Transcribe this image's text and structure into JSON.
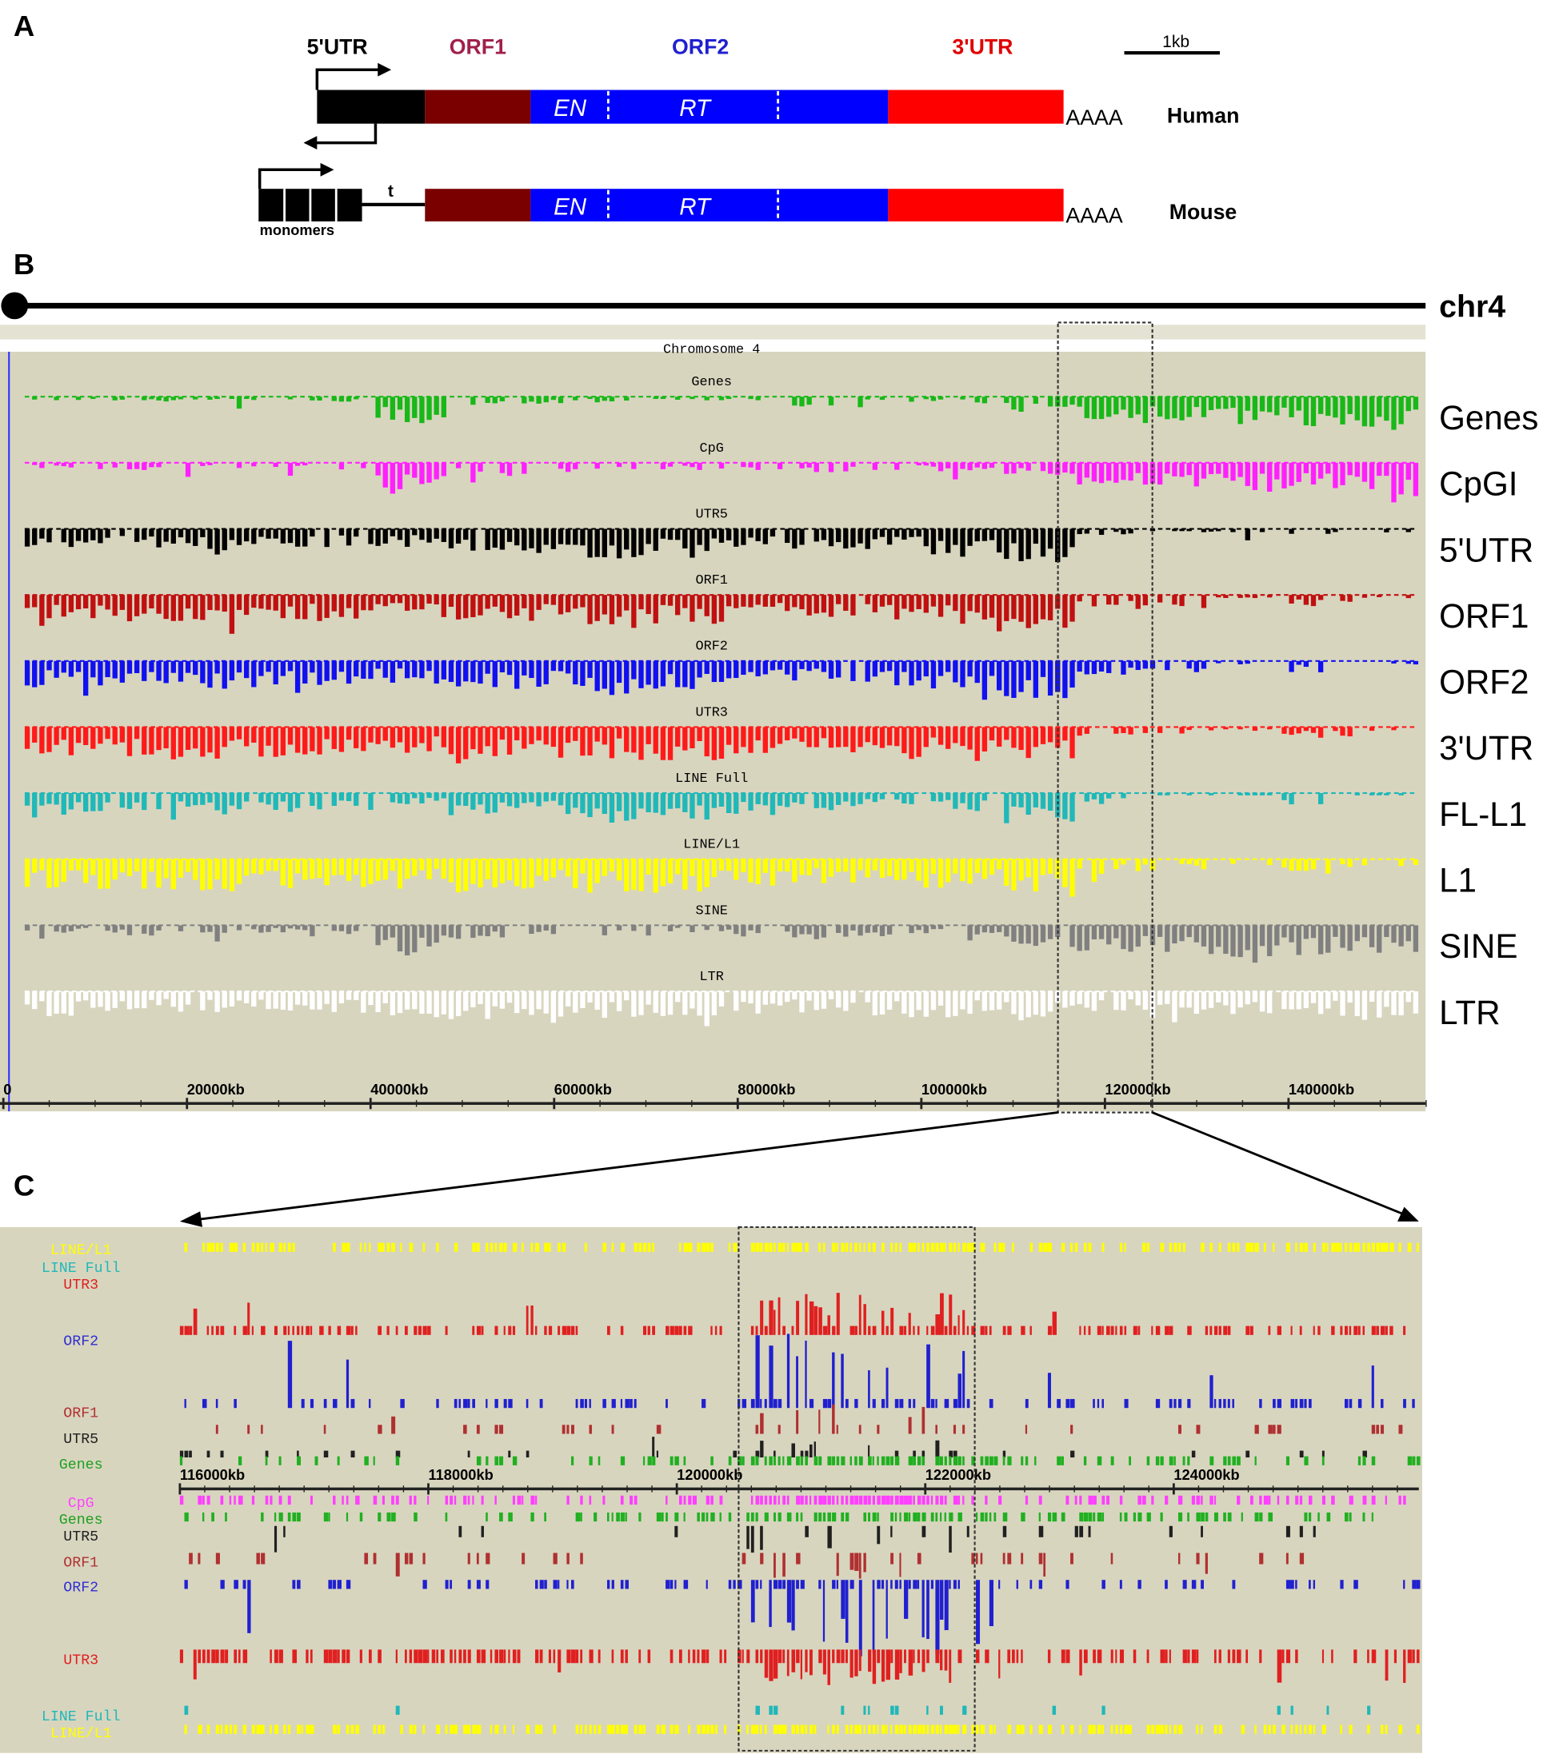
{
  "panelA": {
    "letter": "A",
    "labels": {
      "utr5": "5'UTR",
      "orf1": "ORF1",
      "orf2": "ORF2",
      "utr3": "3'UTR",
      "scale": "1kb"
    },
    "domains": {
      "en": "EN",
      "rt": "RT"
    },
    "polyA": "AAAA",
    "human": "Human",
    "mouse": "Mouse",
    "monomers": "monomers",
    "tether": "t",
    "colors": {
      "utr5": "#000000",
      "orf1": "#7a0000",
      "orf2": "#0000ff",
      "utr3": "#ff0000",
      "orf1_label": "#a0204a",
      "orf2_label": "#2020d0",
      "utr3_label": "#e00000"
    }
  },
  "panelB": {
    "letter": "B",
    "chromosome": "chr4",
    "browser_title": "Chromosome 4",
    "tracks": [
      {
        "key": "Genes",
        "label": "Genes",
        "color": "#18b818",
        "profile": [
          0.1,
          0.15,
          0.1,
          0.1,
          0.15,
          0.7,
          0.3,
          0.2,
          0.15,
          0.1,
          0.1,
          0.3,
          0.15,
          0.2,
          0.4,
          0.6,
          0.7,
          0.8,
          0.8,
          0.9
        ]
      },
      {
        "key": "CpG",
        "label": "CpGI",
        "color": "#ff20ff",
        "profile": [
          0.15,
          0.2,
          0.15,
          0.15,
          0.2,
          0.7,
          0.35,
          0.3,
          0.25,
          0.2,
          0.2,
          0.3,
          0.2,
          0.25,
          0.4,
          0.7,
          0.7,
          0.8,
          0.8,
          0.9
        ]
      },
      {
        "key": "UTR5",
        "label": "5'UTR",
        "color": "#000000",
        "profile": [
          0.5,
          0.5,
          0.6,
          0.55,
          0.5,
          0.5,
          0.6,
          0.7,
          0.8,
          0.7,
          0.6,
          0.55,
          0.6,
          0.7,
          0.9,
          0.2,
          0.1,
          0.1,
          0.2,
          0.1
        ]
      },
      {
        "key": "ORF1",
        "label": "ORF1",
        "color": "#c01010",
        "profile": [
          0.7,
          0.7,
          0.8,
          0.7,
          0.7,
          0.6,
          0.7,
          0.7,
          0.9,
          0.8,
          0.6,
          0.6,
          0.7,
          0.8,
          1,
          0.4,
          0.3,
          0.1,
          0.3,
          0.1
        ]
      },
      {
        "key": "ORF2",
        "label": "ORF2",
        "color": "#1010f0",
        "profile": [
          0.7,
          0.7,
          0.8,
          0.7,
          0.7,
          0.6,
          0.7,
          0.7,
          0.9,
          0.8,
          0.6,
          0.6,
          0.7,
          0.8,
          1,
          0.4,
          0.3,
          0.1,
          0.3,
          0.1
        ]
      },
      {
        "key": "UTR3",
        "label": "3'UTR",
        "color": "#ff1a1a",
        "profile": [
          0.8,
          0.8,
          0.9,
          0.8,
          0.8,
          0.7,
          0.9,
          0.8,
          0.9,
          0.9,
          0.7,
          0.7,
          0.8,
          0.8,
          0.9,
          0.3,
          0.2,
          0.1,
          0.3,
          0.1
        ]
      },
      {
        "key": "LINE Full",
        "label": "FL-L1",
        "color": "#20b8b8",
        "profile": [
          0.6,
          0.5,
          0.6,
          0.5,
          0.5,
          0.3,
          0.6,
          0.6,
          0.8,
          0.7,
          0.6,
          0.4,
          0.3,
          0.5,
          0.9,
          0.3,
          0.05,
          0.05,
          0.3,
          0.05
        ]
      },
      {
        "key": "LINE/L1",
        "label": "L1",
        "color": "#ffff00",
        "profile": [
          0.8,
          0.8,
          0.9,
          0.8,
          0.8,
          0.7,
          0.9,
          0.8,
          0.9,
          0.9,
          0.8,
          0.7,
          0.8,
          0.8,
          0.9,
          0.4,
          0.3,
          0.2,
          0.4,
          0.2
        ]
      },
      {
        "key": "SINE",
        "label": "SINE",
        "color": "#808080",
        "profile": [
          0.2,
          0.3,
          0.2,
          0.2,
          0.3,
          0.8,
          0.4,
          0.3,
          0.3,
          0.2,
          0.3,
          0.4,
          0.3,
          0.3,
          0.6,
          0.8,
          0.8,
          1,
          0.8,
          0.8
        ]
      },
      {
        "key": "LTR",
        "label": "LTR",
        "color": "#ffffff",
        "profile": [
          0.7,
          0.6,
          0.6,
          0.6,
          0.6,
          0.7,
          0.8,
          0.7,
          0.7,
          0.7,
          0.6,
          0.6,
          0.7,
          0.7,
          0.8,
          0.6,
          0.6,
          0.6,
          0.7,
          0.7
        ]
      }
    ],
    "axis_ticks": [
      "0",
      "20000kb",
      "40000kb",
      "60000kb",
      "80000kb",
      "100000kb",
      "120000kb",
      "140000kb"
    ]
  },
  "panelC": {
    "letter": "C",
    "upper_labels": [
      {
        "text": "LINE/L1",
        "color": "#ffff00"
      },
      {
        "text": "LINE Full",
        "color": "#20b8b8"
      },
      {
        "text": "UTR3",
        "color": "#e02020"
      },
      {
        "text": "ORF2",
        "color": "#3030d0"
      },
      {
        "text": "ORF1",
        "color": "#b03030"
      },
      {
        "text": "UTR5",
        "color": "#202020"
      },
      {
        "text": "Genes",
        "color": "#20a020"
      }
    ],
    "lower_labels": [
      {
        "text": "CpG",
        "color": "#ff40ff"
      },
      {
        "text": "Genes",
        "color": "#20a020"
      },
      {
        "text": "UTR5",
        "color": "#202020"
      },
      {
        "text": "ORF1",
        "color": "#b03030"
      },
      {
        "text": "ORF2",
        "color": "#3030d0"
      },
      {
        "text": "UTR3",
        "color": "#e02020"
      },
      {
        "text": "LINE Full",
        "color": "#20b8b8"
      },
      {
        "text": "LINE/L1",
        "color": "#ffff00"
      }
    ],
    "axis_ticks": [
      "116000kb",
      "118000kb",
      "120000kb",
      "122000kb",
      "124000kb"
    ]
  },
  "colors": {
    "browser_bg": "#d8d5bf",
    "strip": "#e4e2d2"
  }
}
